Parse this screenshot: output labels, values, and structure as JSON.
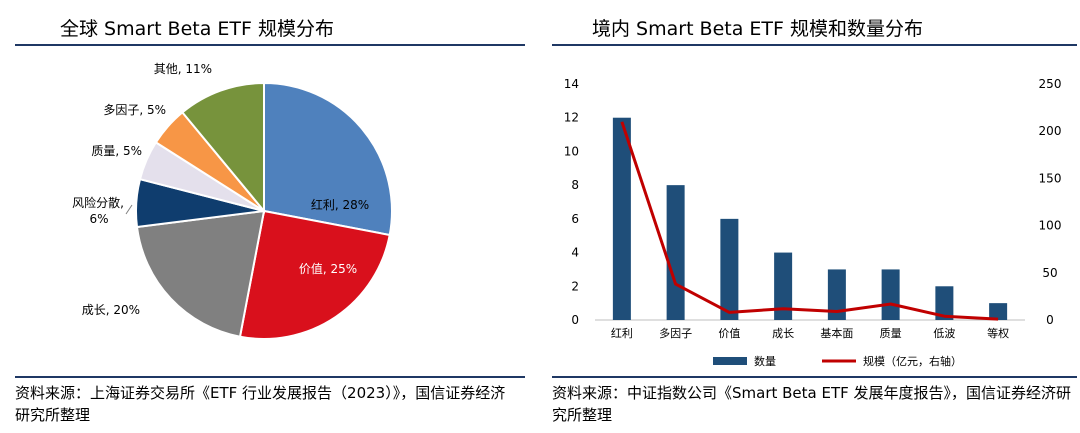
{
  "left": {
    "title": "全球 Smart Beta ETF 规模分布",
    "source": "资料来源：上海证券交易所《ETF 行业发展报告（2023）》，国信证券经济研究所整理"
  },
  "right": {
    "title": "境内 Smart Beta ETF 规模和数量分布",
    "source": "资料来源：中证指数公司《Smart Beta ETF 发展年度报告》，国信证券经济研究所整理"
  },
  "colors": {
    "rule": "#1f3864",
    "bar": "#1f4e79",
    "line": "#c00000",
    "pie": [
      "#4f81bd",
      "#d9101c",
      "#808080",
      "#0f3d6e",
      "#e4e0ec",
      "#f79646",
      "#77933c"
    ]
  },
  "chart_data": [
    {
      "type": "pie",
      "title": "全球 Smart Beta ETF 规模分布",
      "labels": [
        "红利",
        "价值",
        "成长",
        "风险分散",
        "质量",
        "多因子",
        "其他"
      ],
      "values": [
        28,
        25,
        20,
        6,
        5,
        5,
        11
      ],
      "label_text": [
        "红利, 28%",
        "价值, 25%",
        "成长, 20%",
        "风险分散,\n6%",
        "质量, 5%",
        "多因子, 5%",
        "其他, 11%"
      ]
    },
    {
      "type": "bar",
      "title": "境内 Smart Beta ETF 规模和数量分布",
      "categories": [
        "红利",
        "多因子",
        "价值",
        "成长",
        "基本面",
        "质量",
        "低波",
        "等权"
      ],
      "left_ylim": [
        0,
        14
      ],
      "left_ticks": [
        "0",
        "2",
        "4",
        "6",
        "8",
        "10",
        "12",
        "14"
      ],
      "right_ylim": [
        0,
        250
      ],
      "right_ticks": [
        "0",
        "50",
        "100",
        "150",
        "200",
        "250"
      ],
      "series": [
        {
          "name": "数量",
          "type": "bar",
          "axis": "left",
          "values": [
            12,
            8,
            6,
            4,
            3,
            3,
            2,
            1
          ]
        },
        {
          "name": "规模（亿元，右轴）",
          "type": "line",
          "axis": "right",
          "values": [
            210,
            38,
            8,
            12,
            9,
            17,
            4,
            1
          ]
        }
      ],
      "legend_position": "bottom-center"
    }
  ]
}
